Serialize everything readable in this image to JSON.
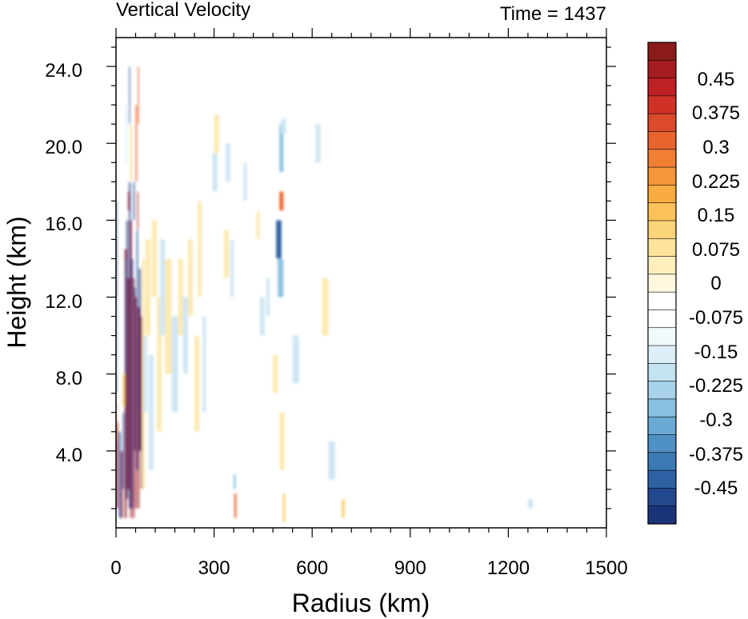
{
  "chart_data": {
    "type": "heatmap",
    "title": "Vertical Velocity",
    "subtitle": "Time = 1437",
    "xlabel": "Radius (km)",
    "ylabel": "Height (km)",
    "xlim": [
      0,
      1500
    ],
    "ylim": [
      0,
      25.5
    ],
    "x_ticks": [
      "0",
      "300",
      "600",
      "900",
      "1200",
      "1500"
    ],
    "y_ticks": [
      "4.0",
      "8.0",
      "12.0",
      "16.0",
      "20.0",
      "24.0"
    ],
    "colorbar": {
      "labels": [
        "0.45",
        "0.375",
        "0.3",
        "0.225",
        "0.15",
        "0.075",
        "0",
        "-0.075",
        "-0.15",
        "-0.225",
        "-0.3",
        "-0.375",
        "-0.45"
      ],
      "colors": [
        "#8b1a1a",
        "#a51c20",
        "#be2025",
        "#d03127",
        "#dc4a2c",
        "#e8642f",
        "#f07e33",
        "#f5963a",
        "#f9ac3f",
        "#fbc25a",
        "#fcd47a",
        "#fde39a",
        "#feefbd",
        "#fff8df",
        "#ffffff",
        "#ffffff",
        "#f2f9fd",
        "#dceef8",
        "#c3e2f2",
        "#a7d2ea",
        "#8ac0e0",
        "#6aa9d3",
        "#4f90c5",
        "#3c78b6",
        "#2e60a3",
        "#24488e",
        "#1b3479"
      ]
    }
  }
}
